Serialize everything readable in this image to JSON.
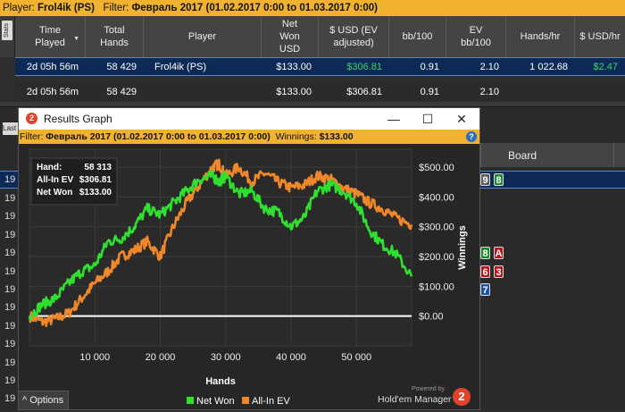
{
  "filter_bar": {
    "player_label": "Player:",
    "player_value": "Frol4ik (PS)",
    "filter_label": "Filter:",
    "filter_value": "Февраль 2017 (01.02.2017 0:00 to 01.03.2017 0:00)"
  },
  "stats_tab": "Stats",
  "table": {
    "columns": [
      {
        "label": "Time\nPlayed",
        "sorted": true
      },
      {
        "label": "Total\nHands"
      },
      {
        "label": "Player"
      },
      {
        "label": "Net\nWon\nUSD"
      },
      {
        "label": "$ USD (EV\nadjusted)"
      },
      {
        "label": "bb/100"
      },
      {
        "label": "EV\nbb/100"
      },
      {
        "label": "Hands/hr"
      },
      {
        "label": "$ USD/hr"
      }
    ],
    "rows": [
      [
        "2d 05h 56m",
        "58 429",
        "Frol4ik (PS)",
        "$133.00",
        "$306.81",
        "0.91",
        "2.10",
        "1 022.68",
        "$2.47"
      ],
      [
        "2d 05h 56m",
        "58 429",
        "",
        "$133.00",
        "$306.81",
        "0.91",
        "2.10",
        "",
        ""
      ]
    ]
  },
  "background": {
    "board_header": "Board",
    "last_tab": "Last",
    "row_numbers": [
      "19",
      "19",
      "19",
      "19",
      "19",
      "19",
      "19",
      "19",
      "19",
      "19",
      "19",
      "19",
      "19",
      "19"
    ],
    "cards": [
      {
        "rank": "9",
        "suit": "gray"
      },
      {
        "rank": "8",
        "suit": "green"
      },
      {
        "rank": "8",
        "suit": "green"
      },
      {
        "rank": "A",
        "suit": "red"
      },
      {
        "rank": "6",
        "suit": "red"
      },
      {
        "rank": "3",
        "suit": "red"
      },
      {
        "rank": "7",
        "suit": "blue"
      }
    ]
  },
  "results_window": {
    "title": "Results Graph",
    "app_icon_glyph": "2",
    "minimize_glyph": "—",
    "maximize_glyph": "☐",
    "close_glyph": "✕",
    "filter_label": "Filter:",
    "filter_value": "Февраль 2017 (01.02.2017 0:00 to 01.03.2017 0:00)",
    "winnings_label": "Winnings:",
    "winnings_value": "$133.00",
    "help_glyph": "?",
    "options_label": "Options",
    "options_glyph": "^",
    "powered_by": "Powered by",
    "brand": "Hold'em Manager",
    "brand_glyph": "2"
  },
  "tooltip": {
    "rows": [
      {
        "label": "Hand:",
        "value": "58 313"
      },
      {
        "label": "All-In EV",
        "value": "$306.81"
      },
      {
        "label": "Net Won",
        "value": "$133.00"
      }
    ]
  },
  "chart_data": {
    "type": "line",
    "xlabel": "Hands",
    "ylabel": "Winnings",
    "xlim": [
      0,
      58429
    ],
    "ylim": [
      -100,
      560
    ],
    "x_ticks": [
      10000,
      20000,
      30000,
      40000,
      50000
    ],
    "x_tick_labels": [
      "10 000",
      "20 000",
      "30 000",
      "40 000",
      "50 000"
    ],
    "y_ticks": [
      0,
      100,
      200,
      300,
      400,
      500
    ],
    "y_tick_labels": [
      "$0.00",
      "$100.00",
      "$200.00",
      "$300.00",
      "$400.00",
      "$500.00"
    ],
    "grid": true,
    "legend_position": "bottom",
    "series": [
      {
        "name": "Net Won",
        "color": "#2fe02f",
        "x": [
          0,
          2000,
          4000,
          6000,
          8000,
          10000,
          12000,
          14000,
          16000,
          18000,
          20000,
          22000,
          24000,
          26000,
          28000,
          29000,
          30000,
          32000,
          34000,
          36000,
          38000,
          40000,
          42000,
          44000,
          46000,
          48000,
          50000,
          52000,
          54000,
          56000,
          58429
        ],
        "y": [
          0,
          40,
          60,
          110,
          150,
          170,
          250,
          260,
          300,
          360,
          340,
          380,
          420,
          460,
          470,
          450,
          470,
          410,
          420,
          360,
          350,
          300,
          330,
          420,
          440,
          420,
          380,
          290,
          240,
          210,
          133
        ]
      },
      {
        "name": "All-In EV",
        "color": "#f0882a",
        "x": [
          0,
          2000,
          4000,
          6000,
          8000,
          10000,
          12000,
          14000,
          16000,
          18000,
          20000,
          22000,
          24000,
          26000,
          28000,
          29000,
          30000,
          32000,
          34000,
          36000,
          38000,
          40000,
          42000,
          44000,
          46000,
          48000,
          50000,
          52000,
          54000,
          56000,
          58429
        ],
        "y": [
          0,
          -20,
          -10,
          10,
          60,
          110,
          150,
          200,
          220,
          250,
          200,
          300,
          380,
          440,
          500,
          510,
          470,
          500,
          450,
          480,
          450,
          430,
          440,
          470,
          460,
          430,
          410,
          380,
          360,
          330,
          307
        ]
      }
    ]
  }
}
